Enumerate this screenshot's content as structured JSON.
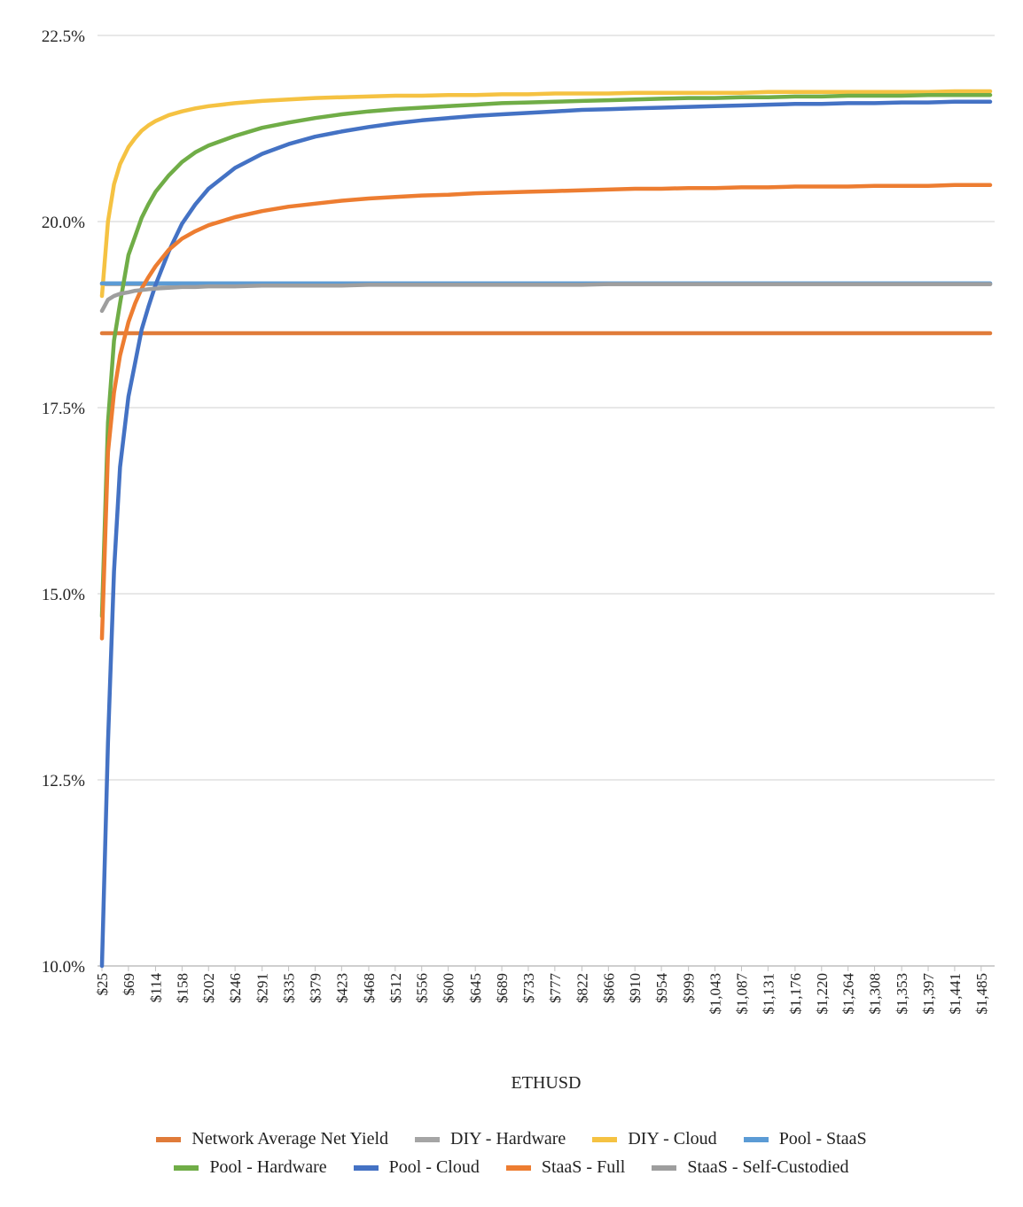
{
  "chart_data": {
    "type": "line",
    "xlabel": "ETHUSD",
    "ylabel": "",
    "title": "",
    "ylim": [
      10.0,
      22.5
    ],
    "y_ticks": [
      "10.0%",
      "12.5%",
      "15.0%",
      "17.5%",
      "20.0%",
      "22.5%"
    ],
    "y_tick_values": [
      10.0,
      12.5,
      15.0,
      17.5,
      20.0,
      22.5
    ],
    "x_range": [
      25,
      1500
    ],
    "x_ticks": [
      "$25",
      "$69",
      "$114",
      "$158",
      "$202",
      "$246",
      "$291",
      "$335",
      "$379",
      "$423",
      "$468",
      "$512",
      "$556",
      "$600",
      "$645",
      "$689",
      "$733",
      "$777",
      "$822",
      "$866",
      "$910",
      "$954",
      "$999",
      "$1,043",
      "$1,087",
      "$1,131",
      "$1,176",
      "$1,220",
      "$1,264",
      "$1,308",
      "$1,353",
      "$1,397",
      "$1,441",
      "$1,485"
    ],
    "x_tick_values": [
      25,
      69,
      114,
      158,
      202,
      246,
      291,
      335,
      379,
      423,
      468,
      512,
      556,
      600,
      645,
      689,
      733,
      777,
      822,
      866,
      910,
      954,
      999,
      1043,
      1087,
      1131,
      1176,
      1220,
      1264,
      1308,
      1353,
      1397,
      1441,
      1485
    ],
    "x": [
      25,
      35,
      45,
      55,
      69,
      80,
      91,
      102,
      114,
      136,
      158,
      180,
      202,
      246,
      291,
      335,
      379,
      423,
      468,
      512,
      556,
      600,
      645,
      689,
      733,
      777,
      822,
      866,
      910,
      954,
      999,
      1043,
      1087,
      1131,
      1176,
      1220,
      1264,
      1308,
      1353,
      1397,
      1441,
      1485,
      1500
    ],
    "series": [
      {
        "name": "Network Average Net Yield",
        "color": "#E07B39",
        "values": [
          18.5,
          18.5,
          18.5,
          18.5,
          18.5,
          18.5,
          18.5,
          18.5,
          18.5,
          18.5,
          18.5,
          18.5,
          18.5,
          18.5,
          18.5,
          18.5,
          18.5,
          18.5,
          18.5,
          18.5,
          18.5,
          18.5,
          18.5,
          18.5,
          18.5,
          18.5,
          18.5,
          18.5,
          18.5,
          18.5,
          18.5,
          18.5,
          18.5,
          18.5,
          18.5,
          18.5,
          18.5,
          18.5,
          18.5,
          18.5,
          18.5,
          18.5,
          18.5
        ]
      },
      {
        "name": "DIY - Hardware",
        "color": "#A5A5A5",
        "values": [
          19.16,
          19.16,
          19.16,
          19.16,
          19.16,
          19.16,
          19.16,
          19.16,
          19.16,
          19.16,
          19.16,
          19.16,
          19.16,
          19.16,
          19.16,
          19.16,
          19.16,
          19.16,
          19.16,
          19.16,
          19.16,
          19.16,
          19.16,
          19.16,
          19.16,
          19.16,
          19.16,
          19.16,
          19.16,
          19.16,
          19.16,
          19.16,
          19.16,
          19.16,
          19.16,
          19.16,
          19.16,
          19.16,
          19.16,
          19.16,
          19.16,
          19.16,
          19.16
        ]
      },
      {
        "name": "DIY - Cloud",
        "color": "#F5C242",
        "values": [
          19.0,
          20.0,
          20.5,
          20.77,
          21.0,
          21.12,
          21.22,
          21.29,
          21.35,
          21.43,
          21.48,
          21.52,
          21.55,
          21.59,
          21.62,
          21.64,
          21.66,
          21.67,
          21.68,
          21.69,
          21.69,
          21.7,
          21.7,
          21.71,
          21.71,
          21.72,
          21.72,
          21.72,
          21.73,
          21.73,
          21.73,
          21.73,
          21.73,
          21.74,
          21.74,
          21.74,
          21.74,
          21.74,
          21.74,
          21.74,
          21.75,
          21.75,
          21.75
        ]
      },
      {
        "name": "Pool - StaaS",
        "color": "#5B9BD5",
        "values": [
          19.17,
          19.17,
          19.17,
          19.17,
          19.17,
          19.17,
          19.17,
          19.17,
          19.17,
          19.17,
          19.17,
          19.17,
          19.17,
          19.17,
          19.17,
          19.17,
          19.17,
          19.17,
          19.17,
          19.17,
          19.17,
          19.17,
          19.17,
          19.17,
          19.17,
          19.17,
          19.17,
          19.17,
          19.17,
          19.17,
          19.17,
          19.17,
          19.17,
          19.17,
          19.17,
          19.17,
          19.17,
          19.17,
          19.17,
          19.17,
          19.17,
          19.17,
          19.17
        ]
      },
      {
        "name": "Pool - Hardware",
        "color": "#70AD47",
        "values": [
          14.7,
          17.3,
          18.4,
          18.9,
          19.55,
          19.8,
          20.05,
          20.23,
          20.4,
          20.62,
          20.8,
          20.93,
          21.02,
          21.15,
          21.26,
          21.33,
          21.39,
          21.44,
          21.48,
          21.51,
          21.53,
          21.55,
          21.57,
          21.59,
          21.6,
          21.61,
          21.62,
          21.63,
          21.64,
          21.65,
          21.66,
          21.66,
          21.67,
          21.67,
          21.68,
          21.68,
          21.69,
          21.69,
          21.69,
          21.7,
          21.7,
          21.7,
          21.7
        ]
      },
      {
        "name": "Pool - Cloud",
        "color": "#4472C4",
        "values": [
          10.0,
          13.0,
          15.3,
          16.7,
          17.65,
          18.1,
          18.55,
          18.85,
          19.15,
          19.6,
          19.97,
          20.23,
          20.44,
          20.72,
          20.91,
          21.04,
          21.14,
          21.21,
          21.27,
          21.32,
          21.36,
          21.39,
          21.42,
          21.44,
          21.46,
          21.48,
          21.5,
          21.51,
          21.52,
          21.53,
          21.54,
          21.55,
          21.56,
          21.57,
          21.58,
          21.58,
          21.59,
          21.59,
          21.6,
          21.6,
          21.61,
          21.61,
          21.61
        ]
      },
      {
        "name": "StaaS - Full",
        "color": "#ED7D31",
        "values": [
          14.4,
          16.9,
          17.7,
          18.2,
          18.65,
          18.9,
          19.1,
          19.25,
          19.4,
          19.62,
          19.77,
          19.87,
          19.95,
          20.06,
          20.14,
          20.2,
          20.24,
          20.28,
          20.31,
          20.33,
          20.35,
          20.36,
          20.38,
          20.39,
          20.4,
          20.41,
          20.42,
          20.43,
          20.44,
          20.44,
          20.45,
          20.45,
          20.46,
          20.46,
          20.47,
          20.47,
          20.47,
          20.48,
          20.48,
          20.48,
          20.49,
          20.49,
          20.49
        ]
      },
      {
        "name": "StaaS - Self-Custodied",
        "color": "#9E9E9E",
        "values": [
          18.8,
          18.95,
          19.0,
          19.03,
          19.05,
          19.07,
          19.08,
          19.09,
          19.1,
          19.11,
          19.12,
          19.12,
          19.13,
          19.13,
          19.14,
          19.14,
          19.14,
          19.14,
          19.15,
          19.15,
          19.15,
          19.15,
          19.15,
          19.15,
          19.15,
          19.15,
          19.15,
          19.16,
          19.16,
          19.16,
          19.16,
          19.16,
          19.16,
          19.16,
          19.16,
          19.16,
          19.16,
          19.16,
          19.16,
          19.16,
          19.16,
          19.16,
          19.16
        ]
      }
    ]
  },
  "legend": {
    "row1": [
      {
        "label": "Network Average Net Yield",
        "color": "#E07B39"
      },
      {
        "label": "DIY - Hardware",
        "color": "#A5A5A5"
      },
      {
        "label": "DIY - Cloud",
        "color": "#F5C242"
      },
      {
        "label": "Pool - StaaS",
        "color": "#5B9BD5"
      }
    ],
    "row2": [
      {
        "label": "Pool - Hardware",
        "color": "#70AD47"
      },
      {
        "label": "Pool - Cloud",
        "color": "#4472C4"
      },
      {
        "label": "StaaS - Full",
        "color": "#ED7D31"
      },
      {
        "label": "StaaS - Self-Custodied",
        "color": "#9E9E9E"
      }
    ]
  }
}
